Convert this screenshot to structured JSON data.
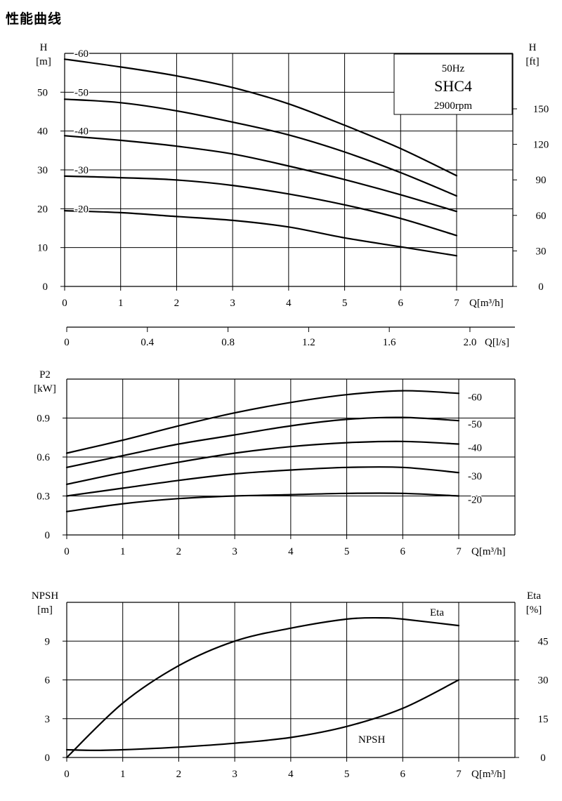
{
  "page_title": "性能曲线",
  "chart_data": [
    {
      "type": "line",
      "id": "head",
      "infobox": [
        "50Hz",
        "SHC4",
        "2900rpm"
      ],
      "xlabel": "Q[m³/h]",
      "x_ticks": [
        "0",
        "1",
        "2",
        "3",
        "4",
        "5",
        "6",
        "7"
      ],
      "xlim": [
        0,
        7
      ],
      "ylabel": [
        "H",
        "[m]"
      ],
      "y_ticks": [
        "0",
        "10",
        "20",
        "30",
        "40",
        "50"
      ],
      "ylim": [
        0,
        60
      ],
      "y2label": [
        "H",
        "[ft]"
      ],
      "y2_ticks": [
        "0",
        "30",
        "60",
        "90",
        "120",
        "150"
      ],
      "secondary_x": {
        "label": "Q[l/s]",
        "ticks": [
          "0",
          "0.4",
          "0.8",
          "1.2",
          "1.6",
          "2.0"
        ]
      },
      "grid": true,
      "series": [
        {
          "name": "-60",
          "x": [
            0,
            1,
            2,
            3,
            4,
            5,
            6,
            7
          ],
          "y": [
            58.5,
            56.5,
            54.2,
            51.2,
            47,
            41.5,
            35.5,
            28.5
          ]
        },
        {
          "name": "-50",
          "x": [
            0,
            1,
            2,
            3,
            4,
            5,
            6,
            7
          ],
          "y": [
            48.2,
            47.3,
            45.2,
            42.3,
            39,
            34.6,
            29.3,
            23.3
          ]
        },
        {
          "name": "-40",
          "x": [
            0,
            1,
            2,
            3,
            4,
            5,
            6,
            7
          ],
          "y": [
            38.8,
            37.6,
            36.1,
            34.1,
            31,
            27.5,
            23.6,
            19.3
          ]
        },
        {
          "name": "-30",
          "x": [
            0,
            1,
            2,
            3,
            4,
            5,
            6,
            7
          ],
          "y": [
            28.4,
            28.0,
            27.4,
            26.0,
            23.8,
            21.0,
            17.5,
            13.1
          ]
        },
        {
          "name": "-20",
          "x": [
            0,
            1,
            2,
            3,
            4,
            5,
            6,
            7
          ],
          "y": [
            19.5,
            19.0,
            18.0,
            17.0,
            15.3,
            12.5,
            10.2,
            7.9
          ]
        }
      ]
    },
    {
      "type": "line",
      "id": "power",
      "xlabel": "Q[m³/h]",
      "x_ticks": [
        "0",
        "1",
        "2",
        "3",
        "4",
        "5",
        "6",
        "7"
      ],
      "xlim": [
        0,
        7
      ],
      "ylabel": [
        "P2",
        "[kW]"
      ],
      "y_ticks": [
        "0",
        "0.3",
        "0.6",
        "0.9"
      ],
      "ylim": [
        0,
        1.2
      ],
      "grid": true,
      "series": [
        {
          "name": "-60",
          "x": [
            0,
            1,
            2,
            3,
            4,
            5,
            6,
            7
          ],
          "y": [
            0.63,
            0.73,
            0.84,
            0.94,
            1.02,
            1.08,
            1.11,
            1.09
          ]
        },
        {
          "name": "-50",
          "x": [
            0,
            1,
            2,
            3,
            4,
            5,
            6,
            7
          ],
          "y": [
            0.52,
            0.61,
            0.7,
            0.77,
            0.84,
            0.89,
            0.905,
            0.88
          ]
        },
        {
          "name": "-40",
          "x": [
            0,
            1,
            2,
            3,
            4,
            5,
            6,
            7
          ],
          "y": [
            0.39,
            0.48,
            0.56,
            0.63,
            0.68,
            0.71,
            0.72,
            0.7
          ]
        },
        {
          "name": "-30",
          "x": [
            0,
            1,
            2,
            3,
            4,
            5,
            6,
            7
          ],
          "y": [
            0.3,
            0.36,
            0.42,
            0.47,
            0.5,
            0.52,
            0.52,
            0.48
          ]
        },
        {
          "name": "-20",
          "x": [
            0,
            1,
            2,
            3,
            4,
            5,
            6,
            7
          ],
          "y": [
            0.18,
            0.24,
            0.28,
            0.3,
            0.31,
            0.32,
            0.32,
            0.3
          ]
        }
      ]
    },
    {
      "type": "line",
      "id": "npsh_eta",
      "xlabel": "Q[m³/h]",
      "x_ticks": [
        "0",
        "1",
        "2",
        "3",
        "4",
        "5",
        "6",
        "7"
      ],
      "xlim": [
        0,
        7
      ],
      "ylabel": [
        "NPSH",
        "[m]"
      ],
      "y_ticks": [
        "0",
        "3",
        "6",
        "9"
      ],
      "ylim": [
        0,
        12
      ],
      "y2label": [
        "Eta",
        "[%]"
      ],
      "y2_ticks": [
        "0",
        "15",
        "30",
        "45"
      ],
      "y2lim": [
        0,
        60
      ],
      "grid": true,
      "series": [
        {
          "name": "Eta",
          "axis": "right",
          "x": [
            0,
            1,
            2,
            3,
            4,
            5,
            5.6,
            6,
            7
          ],
          "y": [
            0,
            21,
            35.5,
            45,
            50,
            53.5,
            54,
            53.5,
            51
          ]
        },
        {
          "name": "NPSH",
          "axis": "left",
          "x": [
            0,
            0.5,
            1,
            2,
            3,
            4,
            5,
            6,
            7
          ],
          "y": [
            0.6,
            0.55,
            0.6,
            0.8,
            1.1,
            1.55,
            2.4,
            3.8,
            6
          ]
        }
      ]
    }
  ]
}
